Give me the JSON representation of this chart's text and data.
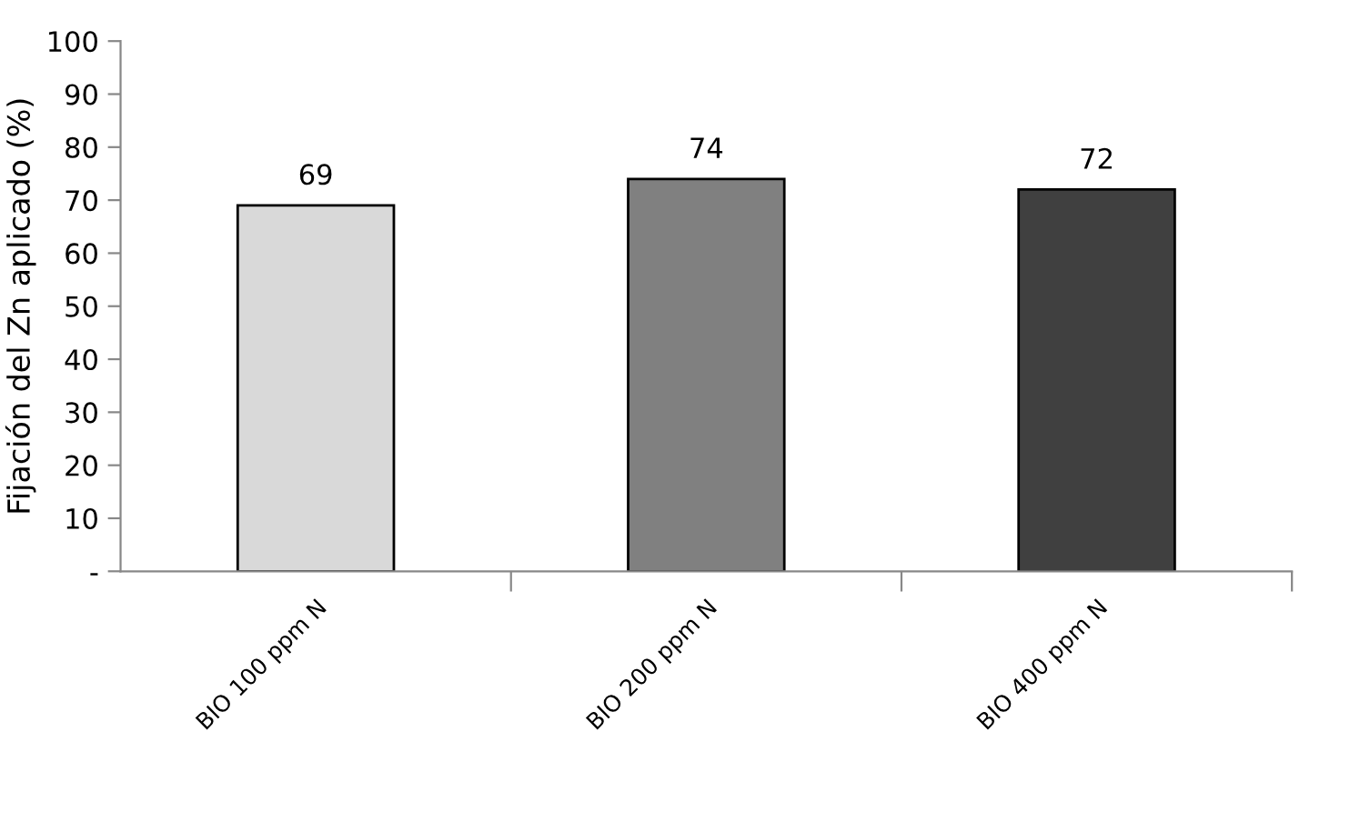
{
  "chart_data": {
    "type": "bar",
    "ylabel": "Fijación del Zn aplicado (%)",
    "categories": [
      "BIO 100 ppm N",
      "BIO 200 ppm N",
      "BIO 400 ppm N"
    ],
    "values": [
      69,
      74,
      72
    ],
    "colors": [
      "#d9d9d9",
      "#808080",
      "#404040"
    ],
    "ylim": [
      0,
      100
    ],
    "yticks": [
      {
        "value": 0,
        "label": "-"
      },
      10,
      20,
      30,
      40,
      50,
      60,
      70,
      80,
      90,
      100
    ],
    "data_labels": true,
    "grid": false,
    "legend": false
  }
}
